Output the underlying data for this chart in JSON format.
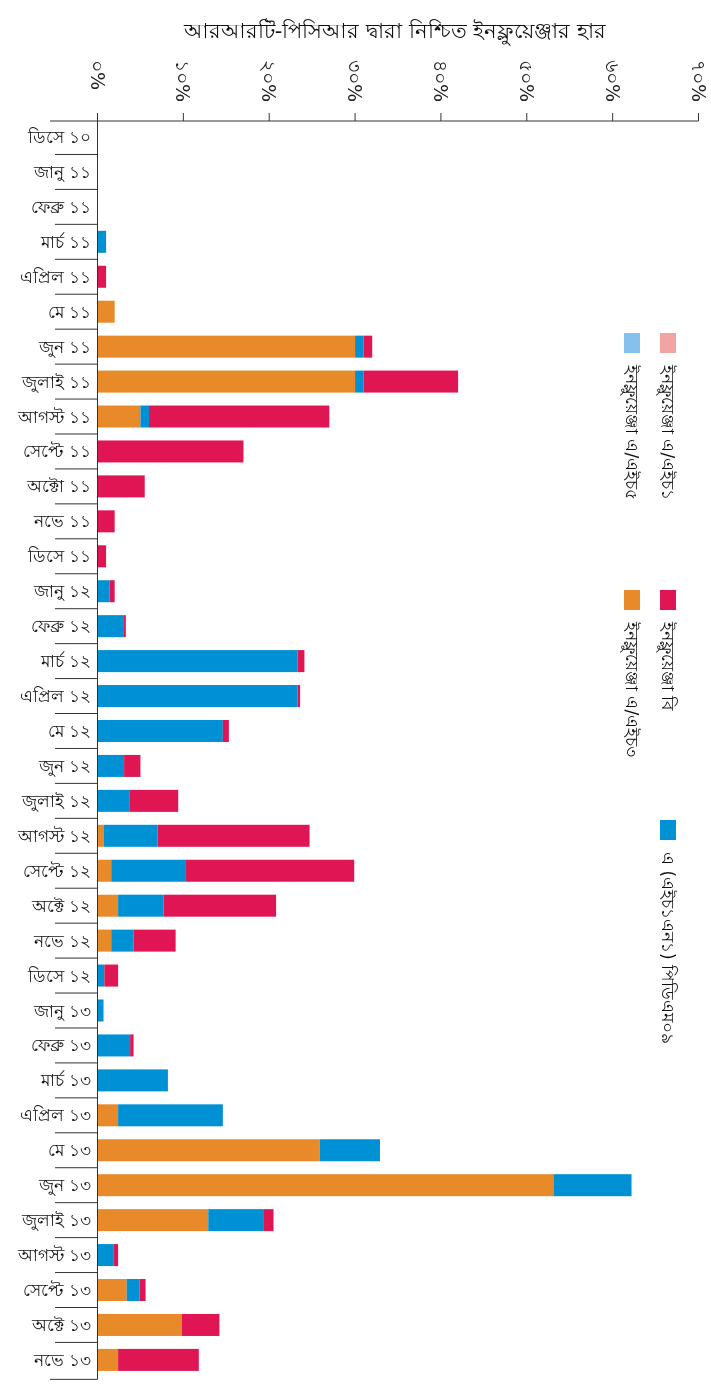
{
  "chart_data": {
    "type": "bar",
    "orientation": "horizontal",
    "stacked": true,
    "title": "আরআরটি-পিসিআর দ্বারা নিশ্চিত ইনফ্লুয়েঞ্জার হার",
    "categories": [
      "ডিসে ১০",
      "জানু ১১",
      "ফেব্রু ১১",
      "মার্চ ১১",
      "এপ্রিল ১১",
      "মে ১১",
      "জুন ১১",
      "জুলাই ১১",
      "আগস্ট ১১",
      "সেপ্টে ১১",
      "অক্টো ১১",
      "নভে ১১",
      "ডিসে ১১",
      "জানু ১২",
      "ফেব্রু ১২",
      "মার্চ ১২",
      "এপ্রিল ১২",
      "মে ১২",
      "জুন ১২",
      "জুলাই ১২",
      "আগস্ট ১২",
      "সেপ্টে ১২",
      "অক্টে ১২",
      "নভে ১২",
      "ডিসে ১২",
      "জানু ১৩",
      "ফেব্রু ১৩",
      "মার্চ ১৩",
      "এপ্রিল ১৩",
      "মে ১৩",
      "জুন ১৩",
      "জুলাই ১৩",
      "আগস্ট ১৩",
      "সেপ্টে ১৩",
      "অক্টে ১৩",
      "নভে ১৩"
    ],
    "xlim": [
      0,
      70
    ],
    "xticks": [
      {
        "value": 0,
        "label": "০%"
      },
      {
        "value": 10,
        "label": "১০%"
      },
      {
        "value": 20,
        "label": "২০%"
      },
      {
        "value": 30,
        "label": "৩০%"
      },
      {
        "value": 40,
        "label": "৪০%"
      },
      {
        "value": 50,
        "label": "৫০%"
      },
      {
        "value": 60,
        "label": "৬০%"
      },
      {
        "value": 70,
        "label": "৭০%"
      }
    ],
    "legend": "right",
    "grid": false,
    "series": [
      {
        "name": "ইনফ্লুয়েঞ্জা এ/এইচ৩",
        "color": "#e8892a",
        "values": [
          null,
          null,
          null,
          null,
          null,
          2.0,
          30,
          30,
          5.0,
          null,
          null,
          null,
          null,
          null,
          null,
          null,
          null,
          null,
          null,
          null,
          0.7,
          1.6,
          2.4,
          1.6,
          null,
          null,
          null,
          null,
          2.4,
          25.9,
          53.1,
          12.9,
          null,
          3.4,
          9.8,
          2.4
        ]
      },
      {
        "name": "এ (এইচ১এন১) পিডিএম০৯",
        "color": "#0090d4",
        "values": [
          null,
          null,
          null,
          1.0,
          null,
          null,
          1.0,
          1.0,
          1.0,
          null,
          null,
          null,
          null,
          1.4,
          3.0,
          23.3,
          23.3,
          14.6,
          3.1,
          3.7,
          6.3,
          8.7,
          5.3,
          2.6,
          0.8,
          0.7,
          3.8,
          8.2,
          12.2,
          7.0,
          9.1,
          6.4,
          1.9,
          1.5,
          null,
          null
        ]
      },
      {
        "name": "ইনফ্লুয়েঞ্জা বি",
        "color": "#e01553",
        "values": [
          null,
          null,
          null,
          null,
          1.0,
          null,
          1.0,
          11.0,
          21.0,
          17.0,
          5.5,
          2.0,
          1.0,
          0.6,
          0.3,
          0.8,
          0.3,
          0.7,
          1.9,
          5.7,
          17.7,
          19.6,
          13.1,
          4.9,
          1.6,
          null,
          0.4,
          null,
          null,
          null,
          null,
          1.2,
          0.5,
          0.7,
          4.4,
          9.4
        ]
      },
      {
        "name": "ইনফ্লুয়েঞ্জা এ/এইচ১",
        "color": "#f4a3a3",
        "values": [
          null,
          null,
          null,
          null,
          null,
          null,
          null,
          null,
          null,
          null,
          null,
          null,
          null,
          null,
          null,
          null,
          null,
          null,
          null,
          null,
          null,
          null,
          null,
          null,
          null,
          null,
          null,
          null,
          null,
          null,
          null,
          null,
          null,
          null,
          null,
          null
        ]
      },
      {
        "name": "ইনফ্লুয়েঞ্জা এ/এইচ৫",
        "color": "#85c1ea",
        "values": [
          null,
          null,
          null,
          null,
          null,
          null,
          null,
          null,
          null,
          null,
          null,
          null,
          null,
          null,
          null,
          null,
          null,
          null,
          null,
          null,
          null,
          null,
          null,
          null,
          null,
          null,
          null,
          null,
          null,
          null,
          null,
          null,
          null,
          null,
          null,
          null
        ]
      }
    ]
  }
}
